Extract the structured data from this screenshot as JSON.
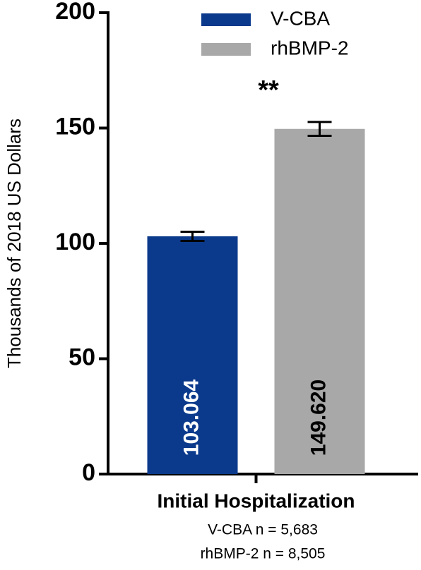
{
  "chart_data": {
    "type": "bar",
    "y_label": "Thousands of 2018 US Dollars",
    "categories": [
      "Initial Hospitalization"
    ],
    "series": [
      {
        "name": "V-CBA",
        "color": "#0b3a8c",
        "value_color": "#ffffff",
        "values": [
          103.064
        ],
        "value_labels": [
          "103.064"
        ],
        "errors": [
          2
        ]
      },
      {
        "name": "rhBMP-2",
        "color": "#a8a8a8",
        "value_color": "#000000",
        "values": [
          149.62
        ],
        "value_labels": [
          "149.620"
        ],
        "errors": [
          3
        ]
      }
    ],
    "annotation": "**",
    "notes": [
      "V-CBA n = 5,683",
      "rhBMP-2 n = 8,505"
    ],
    "ylim": [
      0,
      200
    ],
    "yticks": [
      0,
      50,
      100,
      150,
      200
    ],
    "legend": "top"
  }
}
